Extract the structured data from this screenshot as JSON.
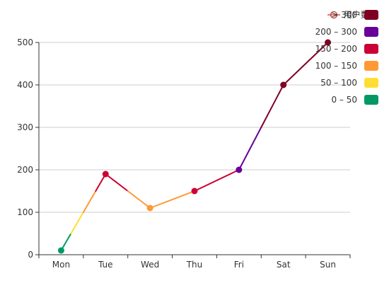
{
  "legend": {
    "series_label": "用户数量"
  },
  "chart_data": {
    "type": "line",
    "categories": [
      "Mon",
      "Tue",
      "Wed",
      "Thu",
      "Fri",
      "Sat",
      "Sun"
    ],
    "series": [
      {
        "name": "用户数量",
        "values": [
          10,
          190,
          110,
          150,
          200,
          400,
          500
        ]
      }
    ],
    "ylim": [
      0,
      500
    ],
    "yticks": [
      0,
      100,
      200,
      300,
      400,
      500
    ],
    "grid": true,
    "legend_placement": "top-right",
    "visual_map": {
      "placement": "right",
      "pieces": [
        {
          "label": "> 300",
          "min": 300,
          "color": "#7e0023"
        },
        {
          "label": "200 – 300",
          "min": 200,
          "max": 300,
          "color": "#660099"
        },
        {
          "label": "150 – 200",
          "min": 150,
          "max": 200,
          "color": "#cc0033"
        },
        {
          "label": "100 – 150",
          "min": 100,
          "max": 150,
          "color": "#ff9933"
        },
        {
          "label": "50 – 100",
          "min": 50,
          "max": 100,
          "color": "#ffde33"
        },
        {
          "label": "0 – 50",
          "min": 0,
          "max": 50,
          "color": "#096"
        }
      ]
    }
  }
}
